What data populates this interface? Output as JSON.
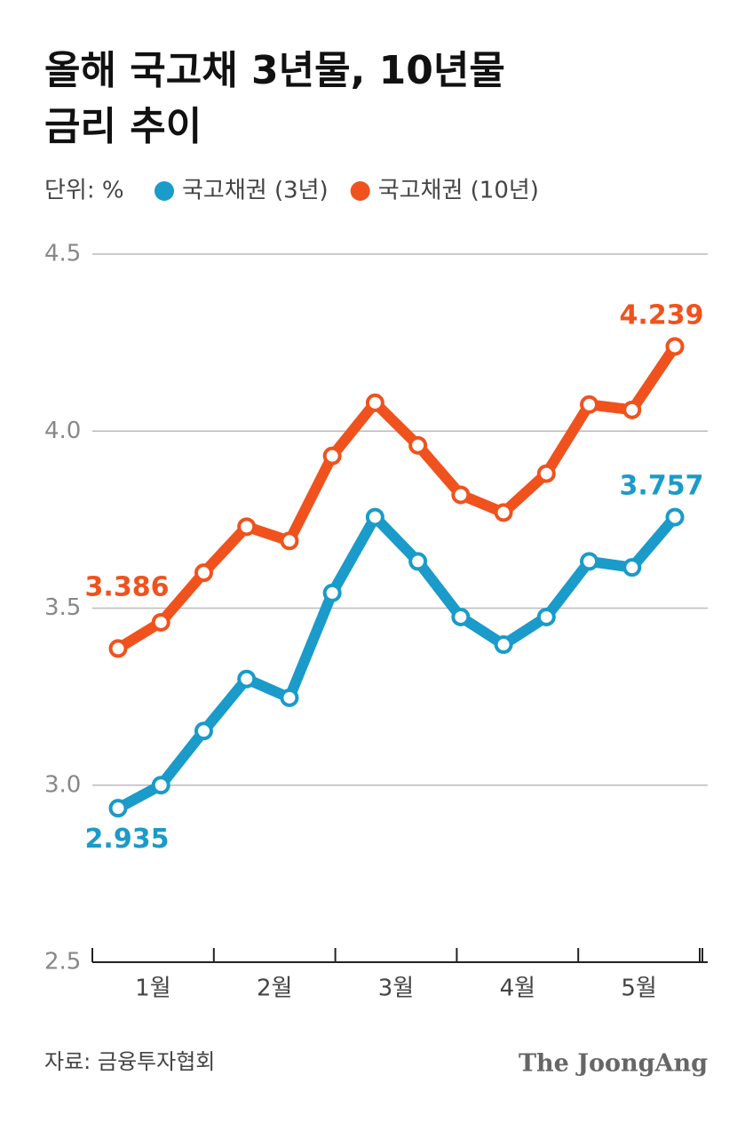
{
  "chart_data": {
    "type": "line",
    "title": [
      "올해 국고채 3년물, 10년물",
      "금리 추이"
    ],
    "unit": "단위: %",
    "categories": [
      null,
      null,
      null,
      null,
      null,
      null,
      null,
      null,
      null,
      null,
      null,
      null,
      null,
      null
    ],
    "months": [
      "1월",
      "2월",
      "3월",
      "4월",
      "5월"
    ],
    "series": [
      {
        "name": "국고채권 (3년)",
        "color": "#1a9bc9",
        "values": [
          2.935,
          3.0,
          3.153,
          3.3,
          3.247,
          3.543,
          3.757,
          3.632,
          3.475,
          3.397,
          3.475,
          3.632,
          3.615,
          3.757
        ]
      },
      {
        "name": "국고채권 (10년)",
        "color": "#f0521e",
        "values": [
          3.386,
          3.46,
          3.6,
          3.73,
          3.69,
          3.93,
          4.08,
          3.96,
          3.82,
          3.77,
          3.88,
          4.075,
          4.06,
          4.239
        ]
      }
    ],
    "labeled_points": [
      0,
      13
    ],
    "ylim": [
      2.5,
      4.5
    ],
    "yticks": [
      2.5,
      {
        "value": 3,
        "label": "3.0"
      },
      3.5,
      {
        "value": 4,
        "label": "4.0"
      },
      4.5
    ],
    "grid": true,
    "source": "자료: 금융투자협회",
    "logo": "The JoongAng"
  }
}
